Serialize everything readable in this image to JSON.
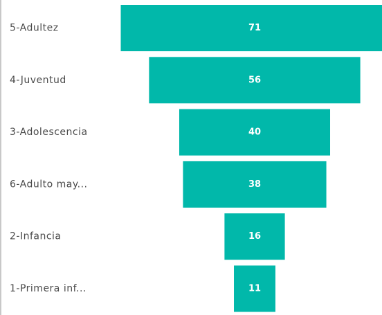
{
  "chart_data": {
    "type": "funnel",
    "categories": [
      "5-Adultez",
      "4-Juventud",
      "3-Adolescencia",
      "6-Adulto may...",
      "2-Infancia",
      "1-Primera inf..."
    ],
    "values": [
      71,
      56,
      40,
      38,
      16,
      11
    ],
    "color": "#01b8aa"
  }
}
